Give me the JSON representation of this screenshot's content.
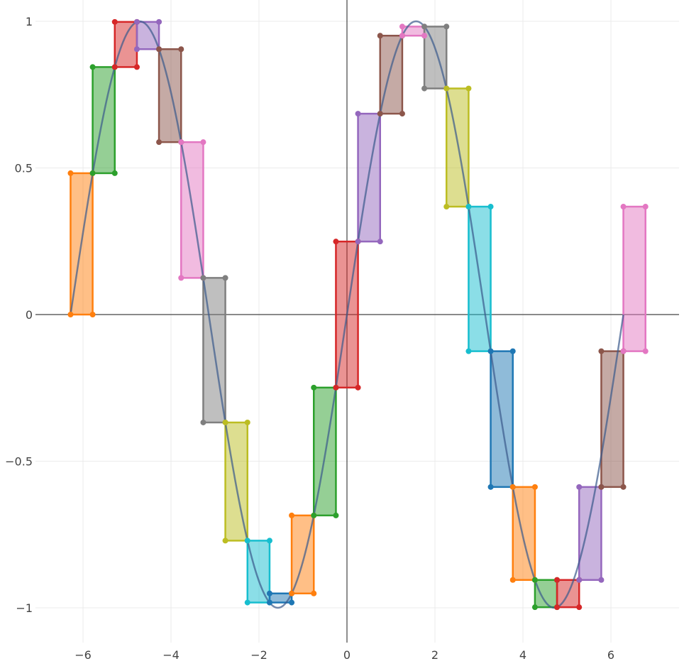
{
  "chart_data": {
    "type": "line",
    "title": "",
    "xlabel": "",
    "ylabel": "",
    "xlim": [
      -6.9,
      7.5
    ],
    "ylim": [
      -1.08,
      1.04
    ],
    "x_ticks": [
      -6,
      -4,
      -2,
      0,
      2,
      4,
      6
    ],
    "x_tick_labels": [
      "−6",
      "−4",
      "−2",
      "0",
      "2",
      "4",
      "6"
    ],
    "y_ticks": [
      -1,
      -0.5,
      0,
      0.5,
      1
    ],
    "y_tick_labels": [
      "−1",
      "−0.5",
      "0",
      "0.5",
      "1"
    ],
    "grid": true,
    "legend": "none",
    "curve": {
      "function": "sin",
      "x_start": -6.283,
      "x_end": 6.283
    },
    "rectangles": [
      {
        "x0": -6.283,
        "x1": -5.781,
        "y0": 0.0,
        "y1": 0.482,
        "color": "#ff7f0e"
      },
      {
        "x0": -5.781,
        "x1": -5.278,
        "y0": 0.482,
        "y1": 0.844,
        "color": "#2ca02c"
      },
      {
        "x0": -5.278,
        "x1": -4.775,
        "y0": 0.844,
        "y1": 0.998,
        "color": "#d62728"
      },
      {
        "x0": -4.775,
        "x1": -4.273,
        "y0": 0.905,
        "y1": 0.998,
        "color": "#9467bd"
      },
      {
        "x0": -4.273,
        "x1": -3.77,
        "y0": 0.588,
        "y1": 0.905,
        "color": "#8c564b"
      },
      {
        "x0": -3.77,
        "x1": -3.267,
        "y0": 0.125,
        "y1": 0.588,
        "color": "#e377c2"
      },
      {
        "x0": -3.267,
        "x1": -2.765,
        "y0": -0.368,
        "y1": 0.125,
        "color": "#7f7f7f"
      },
      {
        "x0": -2.765,
        "x1": -2.262,
        "y0": -0.771,
        "y1": -0.368,
        "color": "#bcbd22"
      },
      {
        "x0": -2.262,
        "x1": -1.759,
        "y0": -0.982,
        "y1": -0.771,
        "color": "#17becf"
      },
      {
        "x0": -1.759,
        "x1": -1.257,
        "y0": -0.982,
        "y1": -0.951,
        "color": "#1f77b4"
      },
      {
        "x0": -1.257,
        "x1": -0.754,
        "y0": -0.951,
        "y1": -0.685,
        "color": "#ff7f0e"
      },
      {
        "x0": -0.754,
        "x1": -0.251,
        "y0": -0.685,
        "y1": -0.249,
        "color": "#2ca02c"
      },
      {
        "x0": -0.251,
        "x1": 0.251,
        "y0": -0.249,
        "y1": 0.249,
        "color": "#d62728"
      },
      {
        "x0": 0.251,
        "x1": 0.754,
        "y0": 0.249,
        "y1": 0.685,
        "color": "#9467bd"
      },
      {
        "x0": 0.754,
        "x1": 1.257,
        "y0": 0.685,
        "y1": 0.951,
        "color": "#8c564b"
      },
      {
        "x0": 1.257,
        "x1": 1.759,
        "y0": 0.951,
        "y1": 0.982,
        "color": "#e377c2"
      },
      {
        "x0": 1.759,
        "x1": 2.262,
        "y0": 0.771,
        "y1": 0.982,
        "color": "#7f7f7f"
      },
      {
        "x0": 2.262,
        "x1": 2.765,
        "y0": 0.368,
        "y1": 0.771,
        "color": "#bcbd22"
      },
      {
        "x0": 2.765,
        "x1": 3.267,
        "y0": -0.125,
        "y1": 0.368,
        "color": "#17becf"
      },
      {
        "x0": 3.267,
        "x1": 3.77,
        "y0": -0.588,
        "y1": -0.125,
        "color": "#1f77b4"
      },
      {
        "x0": 3.77,
        "x1": 4.273,
        "y0": -0.905,
        "y1": -0.588,
        "color": "#ff7f0e"
      },
      {
        "x0": 4.273,
        "x1": 4.775,
        "y0": -0.998,
        "y1": -0.905,
        "color": "#2ca02c"
      },
      {
        "x0": 4.775,
        "x1": 5.278,
        "y0": -0.998,
        "y1": -0.905,
        "color": "#d62728"
      },
      {
        "x0": 5.278,
        "x1": 5.781,
        "y0": -0.905,
        "y1": -0.588,
        "color": "#9467bd"
      },
      {
        "x0": 5.781,
        "x1": 6.283,
        "y0": -0.588,
        "y1": -0.125,
        "color": "#8c564b"
      },
      {
        "x0": 6.283,
        "x1": 6.786,
        "y0": -0.125,
        "y1": 0.368,
        "color": "#e377c2"
      }
    ]
  }
}
